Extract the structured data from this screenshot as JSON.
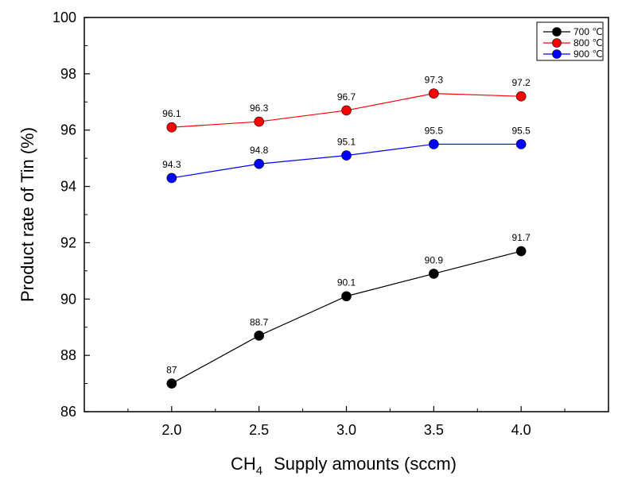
{
  "chart_data": {
    "type": "line",
    "title": "",
    "xlabel": {
      "prefix": "CH",
      "subscript": "4",
      "suffix": "Supply amounts (sccm)"
    },
    "ylabel": "Product rate of Tin (%)",
    "x": [
      2.0,
      2.5,
      3.0,
      3.5,
      4.0
    ],
    "x_tick_labels": [
      "2.0",
      "2.5",
      "3.0",
      "3.5",
      "4.0"
    ],
    "xlim": [
      1.5,
      4.5
    ],
    "ylim": [
      86,
      100
    ],
    "y_ticks": [
      86,
      88,
      90,
      92,
      94,
      96,
      98,
      100
    ],
    "grid": false,
    "legend_position": "top-right",
    "series": [
      {
        "name": "700 ℃",
        "color": "#000000",
        "values": [
          87,
          88.7,
          90.1,
          90.9,
          91.7
        ],
        "labels": [
          "87",
          "88.7",
          "90.1",
          "90.9",
          "91.7"
        ]
      },
      {
        "name": "800 ℃",
        "color": "#ff0000",
        "values": [
          96.1,
          96.3,
          96.7,
          97.3,
          97.2
        ],
        "labels": [
          "96.1",
          "96.3",
          "96.7",
          "97.3",
          "97.2"
        ]
      },
      {
        "name": "900 ℃",
        "color": "#0000ff",
        "values": [
          94.3,
          94.8,
          95.1,
          95.5,
          95.5
        ],
        "labels": [
          "94.3",
          "94.8",
          "95.1",
          "95.5",
          "95.5"
        ]
      }
    ]
  }
}
